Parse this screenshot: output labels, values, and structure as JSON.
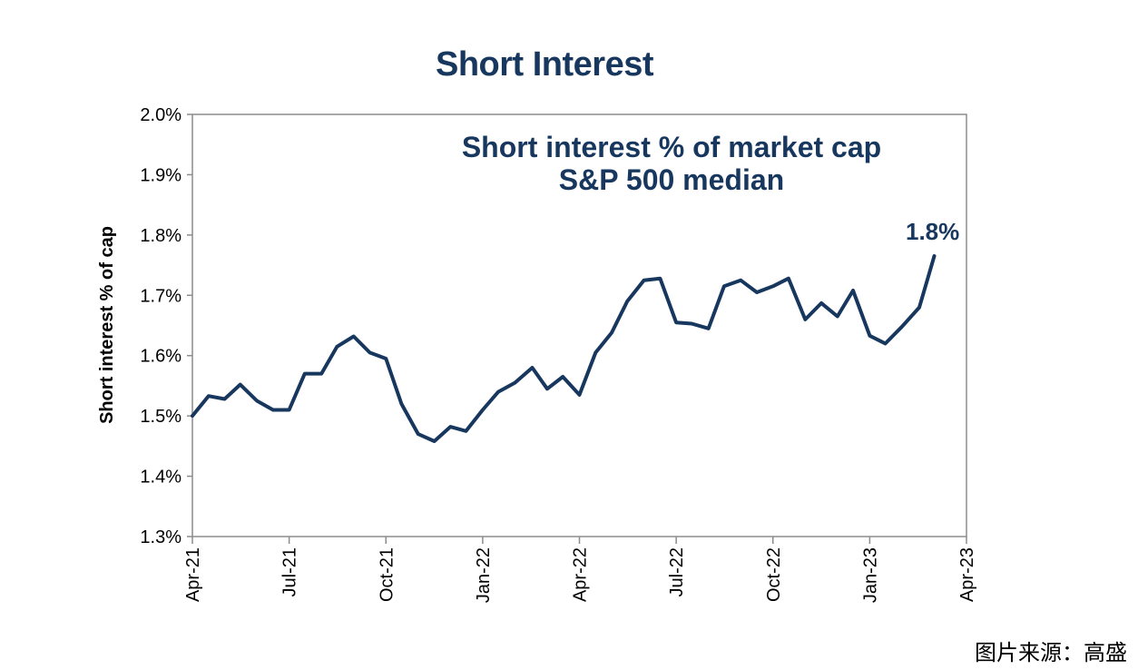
{
  "source_text": "图片来源：高盛",
  "chart_data": {
    "type": "line",
    "title": "Short Interest",
    "subtitle_lines": [
      "Short interest % of market cap",
      "S&P 500 median"
    ],
    "ylabel": "Short interest % of cap",
    "ylim": [
      1.3,
      2.0
    ],
    "yticks": [
      1.3,
      1.4,
      1.5,
      1.6,
      1.7,
      1.8,
      1.9,
      2.0
    ],
    "ytick_labels": [
      "1.3%",
      "1.4%",
      "1.5%",
      "1.6%",
      "1.7%",
      "1.8%",
      "1.9%",
      "2.0%"
    ],
    "xlim": [
      "2021-04",
      "2023-04"
    ],
    "xtick_labels": [
      "Apr-21",
      "Jul-21",
      "Oct-21",
      "Jan-22",
      "Apr-22",
      "Jul-22",
      "Oct-22",
      "Jan-23",
      "Apr-23"
    ],
    "annotation": "1.8%",
    "line_color": "#17375e",
    "grid": false,
    "series": [
      {
        "x": [
          "2021-04-01",
          "2021-04-16",
          "2021-05-01",
          "2021-05-16",
          "2021-06-01",
          "2021-06-16",
          "2021-07-01",
          "2021-07-16",
          "2021-08-01",
          "2021-08-16",
          "2021-09-01",
          "2021-09-16",
          "2021-10-01",
          "2021-10-16",
          "2021-11-01",
          "2021-11-16",
          "2021-12-01",
          "2021-12-16",
          "2022-01-01",
          "2022-01-16",
          "2022-02-01",
          "2022-02-16",
          "2022-03-01",
          "2022-03-16",
          "2022-04-01",
          "2022-04-16",
          "2022-05-01",
          "2022-05-16",
          "2022-06-01",
          "2022-06-16",
          "2022-07-01",
          "2022-07-16",
          "2022-08-01",
          "2022-08-16",
          "2022-09-01",
          "2022-09-16",
          "2022-10-01",
          "2022-10-16",
          "2022-11-01",
          "2022-11-16",
          "2022-12-01",
          "2022-12-16",
          "2023-01-01",
          "2023-01-16",
          "2023-02-01",
          "2023-02-16",
          "2023-03-01"
        ],
        "values": [
          1.5,
          1.533,
          1.528,
          1.552,
          1.525,
          1.51,
          1.51,
          1.57,
          1.57,
          1.615,
          1.632,
          1.605,
          1.595,
          1.52,
          1.47,
          1.458,
          1.482,
          1.475,
          1.51,
          1.54,
          1.555,
          1.58,
          1.545,
          1.565,
          1.535,
          1.605,
          1.638,
          1.69,
          1.725,
          1.728,
          1.655,
          1.653,
          1.645,
          1.715,
          1.725,
          1.705,
          1.715,
          1.728,
          1.66,
          1.687,
          1.665,
          1.708,
          1.633,
          1.62,
          1.648,
          1.68,
          1.765
        ]
      }
    ]
  }
}
